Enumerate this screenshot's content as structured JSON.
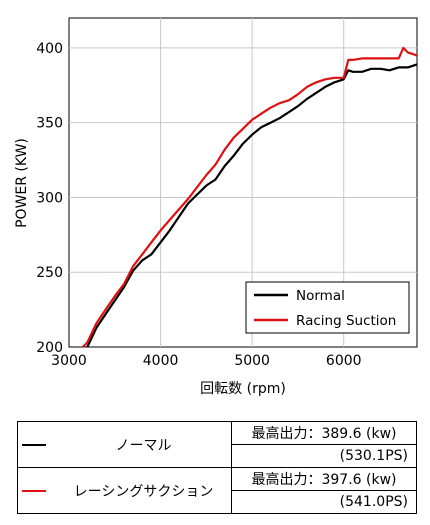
{
  "chart_data": {
    "type": "line",
    "xlabel": "回転数 (rpm)",
    "ylabel": "POWER (KW)",
    "xlim": [
      3000,
      6800
    ],
    "ylim": [
      200,
      420
    ],
    "xticks": [
      "3000",
      "4000",
      "5000",
      "6000"
    ],
    "yticks": [
      "200",
      "250",
      "300",
      "350",
      "400"
    ],
    "legend_position": "bottom-right",
    "series": [
      {
        "name": "Normal",
        "color": "#000000",
        "x": [
          3200,
          3300,
          3400,
          3500,
          3600,
          3700,
          3800,
          3900,
          4000,
          4100,
          4200,
          4300,
          4400,
          4500,
          4600,
          4700,
          4800,
          4900,
          5000,
          5100,
          5200,
          5300,
          5400,
          5500,
          5600,
          5700,
          5800,
          5900,
          6000,
          6050,
          6100,
          6200,
          6300,
          6400,
          6500,
          6600,
          6700,
          6800
        ],
        "y": [
          200,
          213,
          222,
          231,
          240,
          251,
          258,
          262,
          270,
          278,
          287,
          296,
          302,
          308,
          312,
          321,
          328,
          336,
          342,
          347,
          350,
          353,
          357,
          361,
          366,
          370,
          374,
          377,
          379,
          385,
          384,
          384,
          386,
          386,
          385,
          387,
          387,
          389
        ]
      },
      {
        "name": "Racing Suction",
        "color": "#dd1111",
        "x": [
          3150,
          3200,
          3300,
          3400,
          3500,
          3600,
          3700,
          3800,
          3900,
          4000,
          4100,
          4200,
          4300,
          4400,
          4500,
          4600,
          4700,
          4800,
          4900,
          5000,
          5100,
          5200,
          5300,
          5400,
          5500,
          5600,
          5700,
          5800,
          5900,
          6000,
          6050,
          6100,
          6200,
          6300,
          6400,
          6500,
          6600,
          6650,
          6700,
          6800
        ],
        "y": [
          200,
          203,
          216,
          225,
          234,
          242,
          254,
          262,
          270,
          278,
          285,
          292,
          299,
          307,
          315,
          322,
          332,
          340,
          346,
          352,
          356,
          360,
          363,
          365,
          369,
          374,
          377,
          379,
          380,
          380,
          392,
          392,
          393,
          393,
          393,
          393,
          393,
          400,
          397,
          395
        ]
      }
    ]
  },
  "summary_table": {
    "rows": [
      {
        "name": "ノーマル",
        "color": "#000000",
        "max_output": "最高出力：389.6 (kw)",
        "ps": "(530.1PS)"
      },
      {
        "name": "レーシングサクション",
        "color": "#dd1111",
        "max_output": "最高出力：397.6 (kw)",
        "ps": "(541.0PS)"
      }
    ]
  }
}
